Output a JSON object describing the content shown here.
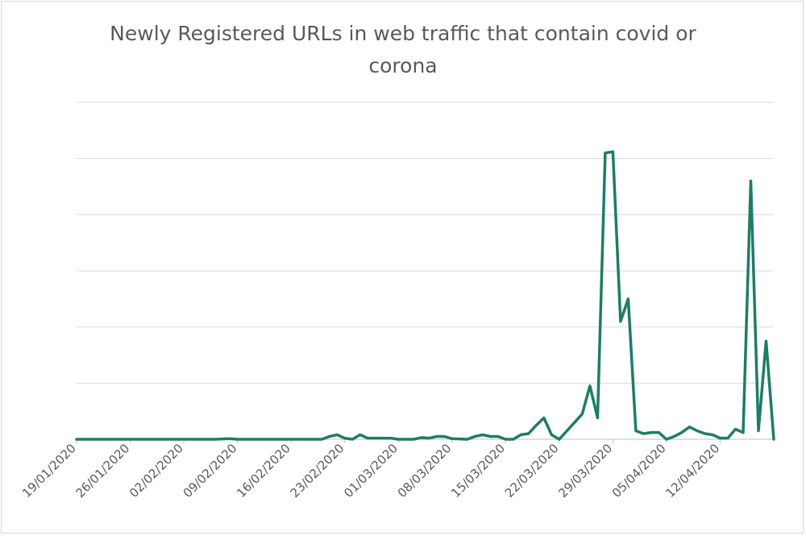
{
  "chart_data": {
    "type": "line",
    "title": "Newly Registered URLs in  web traffic that contain covid or corona",
    "xlabel": "",
    "ylabel": "",
    "y_axis_labels_shown": false,
    "grid": "horizontal",
    "legend": "none",
    "line_color": "#1e7d64",
    "x_tick_labels": [
      "19/01/2020",
      "26/01/2020",
      "02/02/2020",
      "09/02/2020",
      "16/02/2020",
      "23/02/2020",
      "01/03/2020",
      "08/03/2020",
      "15/03/2020",
      "22/03/2020",
      "29/03/2020",
      "05/04/2020",
      "12/04/2020"
    ],
    "ylim": [
      0,
      6
    ],
    "series": [
      {
        "points": [
          [
            "19/01/2020",
            0
          ],
          [
            "22/01/2020",
            0
          ],
          [
            "26/01/2020",
            0
          ],
          [
            "30/01/2020",
            0
          ],
          [
            "02/02/2020",
            0
          ],
          [
            "06/02/2020",
            0
          ],
          [
            "08/02/2020",
            0.01
          ],
          [
            "09/02/2020",
            0
          ],
          [
            "13/02/2020",
            0
          ],
          [
            "16/02/2020",
            0
          ],
          [
            "20/02/2020",
            0
          ],
          [
            "21/02/2020",
            0.05
          ],
          [
            "22/02/2020",
            0.08
          ],
          [
            "23/02/2020",
            0.02
          ],
          [
            "24/02/2020",
            0
          ],
          [
            "25/02/2020",
            0.08
          ],
          [
            "26/02/2020",
            0.02
          ],
          [
            "29/02/2020",
            0.02
          ],
          [
            "01/03/2020",
            0
          ],
          [
            "03/03/2020",
            0
          ],
          [
            "04/03/2020",
            0.03
          ],
          [
            "05/03/2020",
            0.02
          ],
          [
            "06/03/2020",
            0.05
          ],
          [
            "07/03/2020",
            0.05
          ],
          [
            "08/03/2020",
            0.01
          ],
          [
            "10/03/2020",
            0
          ],
          [
            "11/03/2020",
            0.05
          ],
          [
            "12/03/2020",
            0.08
          ],
          [
            "13/03/2020",
            0.05
          ],
          [
            "14/03/2020",
            0.05
          ],
          [
            "15/03/2020",
            0
          ],
          [
            "16/03/2020",
            0
          ],
          [
            "17/03/2020",
            0.08
          ],
          [
            "18/03/2020",
            0.1
          ],
          [
            "19/03/2020",
            0.25
          ],
          [
            "20/03/2020",
            0.38
          ],
          [
            "21/03/2020",
            0.08
          ],
          [
            "22/03/2020",
            0
          ],
          [
            "23/03/2020",
            0.15
          ],
          [
            "24/03/2020",
            0.3
          ],
          [
            "25/03/2020",
            0.45
          ],
          [
            "26/03/2020",
            0.95
          ],
          [
            "27/03/2020",
            0.38
          ],
          [
            "28/03/2020",
            5.1
          ],
          [
            "29/03/2020",
            5.12
          ],
          [
            "30/03/2020",
            2.1
          ],
          [
            "31/03/2020",
            2.5
          ],
          [
            "01/04/2020",
            0.15
          ],
          [
            "02/04/2020",
            0.1
          ],
          [
            "03/04/2020",
            0.12
          ],
          [
            "04/04/2020",
            0.12
          ],
          [
            "05/04/2020",
            0
          ],
          [
            "06/04/2020",
            0.05
          ],
          [
            "07/04/2020",
            0.12
          ],
          [
            "08/04/2020",
            0.22
          ],
          [
            "09/04/2020",
            0.15
          ],
          [
            "10/04/2020",
            0.1
          ],
          [
            "11/04/2020",
            0.08
          ],
          [
            "12/04/2020",
            0.02
          ],
          [
            "13/04/2020",
            0.02
          ],
          [
            "14/04/2020",
            0.18
          ],
          [
            "15/04/2020",
            0.12
          ],
          [
            "16/04/2020",
            4.6
          ],
          [
            "17/04/2020",
            0.15
          ],
          [
            "18/04/2020",
            1.75
          ],
          [
            "19/04/2020",
            0
          ]
        ]
      }
    ]
  }
}
